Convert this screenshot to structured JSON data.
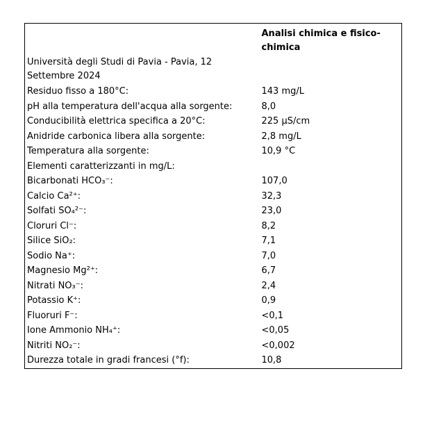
{
  "table": {
    "title": "Analisi chimica e fisico-chimica",
    "source": "Università degli Studi di Pavia - Pavia, 12 Settembre 2024",
    "rows": [
      {
        "label": "Residuo fisso a 180°C:",
        "value": "143 mg/L"
      },
      {
        "label": "pH alla temperatura dell'acqua alla sorgente:",
        "value": "8,0"
      },
      {
        "label": "Conducibilità elettrica specifica a 20°C:",
        "value": "225 µS/cm"
      },
      {
        "label": "Anidride carbonica libera alla sorgente:",
        "value": "2,8 mg/L"
      },
      {
        "label": "Temperatura alla sorgente:",
        "value": "10,9 °C"
      },
      {
        "label": "Elementi caratterizzanti in mg/L:",
        "value": ""
      },
      {
        "label": "Bicarbonati HCO₃⁻:",
        "value": "107,0"
      },
      {
        "label": "Calcio Ca²⁺:",
        "value": "32,3"
      },
      {
        "label": "Solfati SO₄²⁻:",
        "value": "23,0"
      },
      {
        "label": "Cloruri Cl⁻:",
        "value": "8,2"
      },
      {
        "label": "Silice SiO₂:",
        "value": "7,1"
      },
      {
        "label": "Sodio Na⁺:",
        "value": "7,0"
      },
      {
        "label": "Magnesio Mg²⁺:",
        "value": "6,7"
      },
      {
        "label": "Nitrati NO₃⁻:",
        "value": "2,4"
      },
      {
        "label": "Potassio K⁺:",
        "value": "0,9"
      },
      {
        "label": "Fluoruri F⁻:",
        "value": "<0,1"
      },
      {
        "label": "Ione Ammonio NH₄⁺:",
        "value": "<0,05"
      },
      {
        "label": "Nitriti NO₂⁻:",
        "value": "<0,002"
      },
      {
        "label": "Durezza totale in gradi francesi (°f):",
        "value": "10,8"
      }
    ],
    "colors": {
      "text": "#000000",
      "border": "#000000",
      "background": "#ffffff"
    }
  }
}
